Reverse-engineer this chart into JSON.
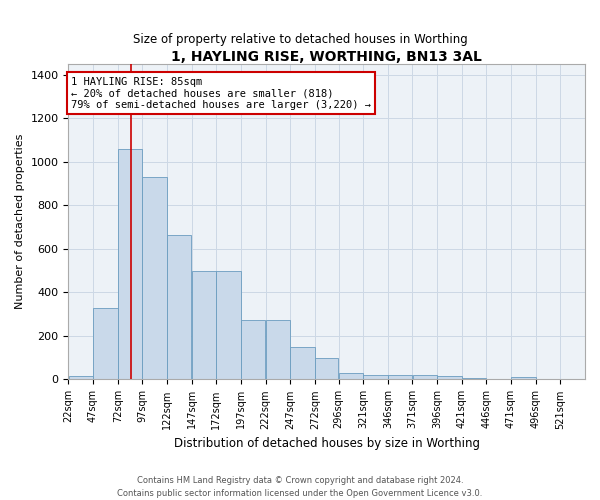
{
  "title": "1, HAYLING RISE, WORTHING, BN13 3AL",
  "subtitle": "Size of property relative to detached houses in Worthing",
  "xlabel": "Distribution of detached houses by size in Worthing",
  "ylabel": "Number of detached properties",
  "footer_line1": "Contains HM Land Registry data © Crown copyright and database right 2024.",
  "footer_line2": "Contains public sector information licensed under the Open Government Licence v3.0.",
  "annotation_line1": "1 HAYLING RISE: 85sqm",
  "annotation_line2": "← 20% of detached houses are smaller (818)",
  "annotation_line3": "79% of semi-detached houses are larger (3,220) →",
  "property_line_x": 85,
  "bar_color": "#c9d9ea",
  "bar_edge_color": "#6a9cbf",
  "grid_color": "#cdd8e5",
  "background_color": "#edf2f7",
  "red_line_color": "#cc0000",
  "annotation_box_color": "#ffffff",
  "annotation_box_edge": "#cc0000",
  "bins_left": [
    22,
    47,
    72,
    97,
    122,
    147,
    172,
    197,
    222,
    247,
    272,
    296,
    321,
    346,
    371,
    396,
    421,
    446,
    471,
    496,
    521
  ],
  "values": [
    15,
    330,
    1060,
    930,
    665,
    500,
    500,
    275,
    275,
    150,
    100,
    30,
    20,
    20,
    20,
    15,
    8,
    0,
    10,
    0,
    0
  ],
  "ylim": [
    0,
    1450
  ],
  "yticks": [
    0,
    200,
    400,
    600,
    800,
    1000,
    1200,
    1400
  ]
}
